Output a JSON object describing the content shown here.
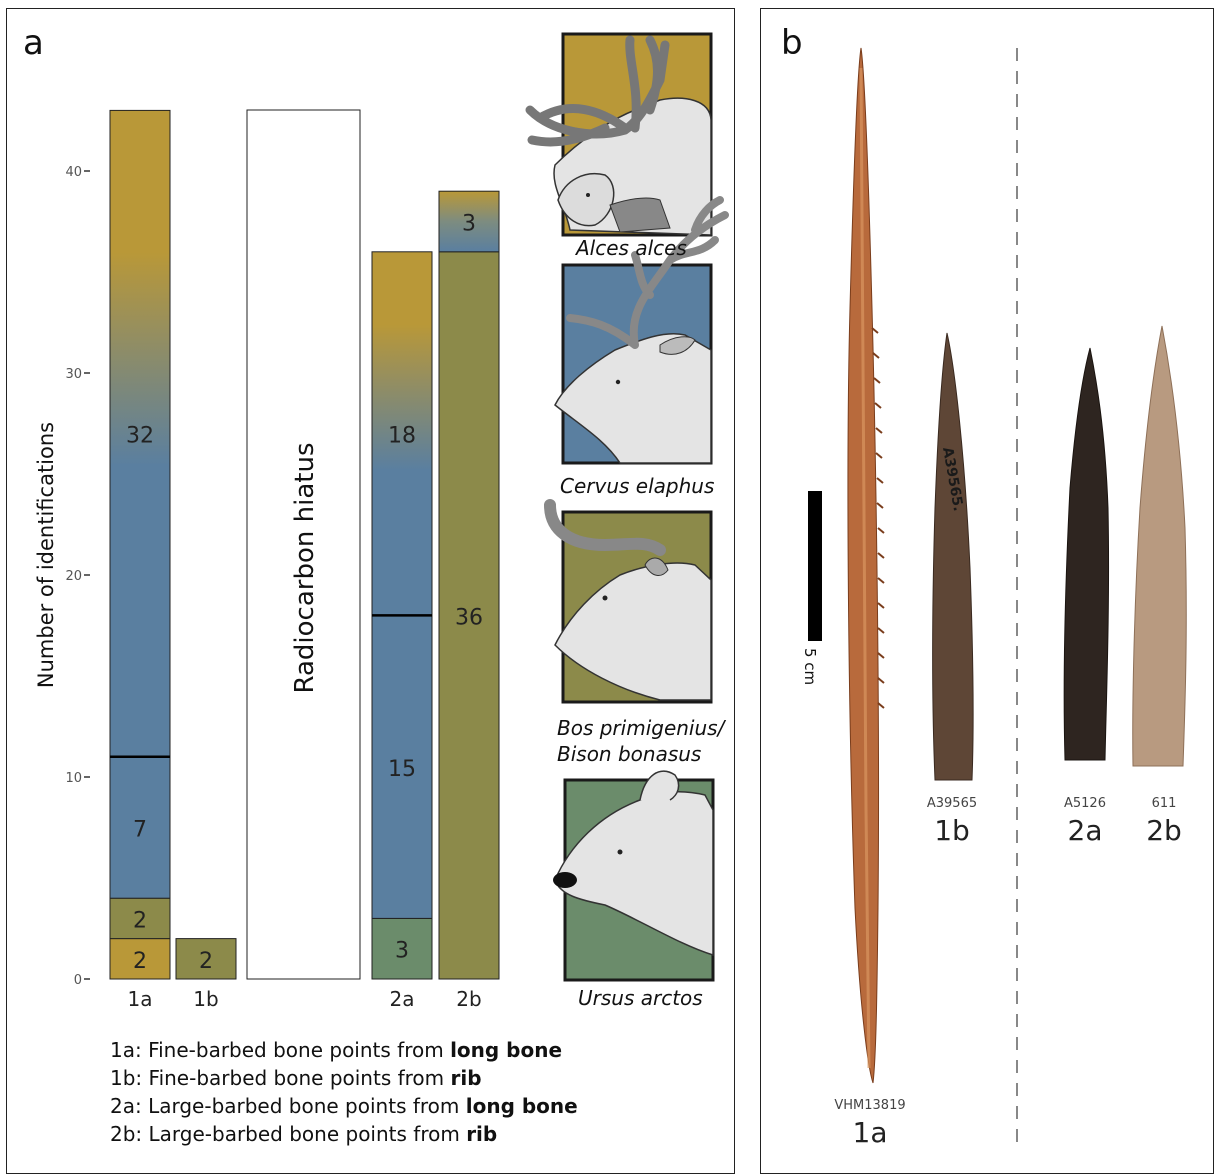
{
  "panel_a_letter": "a",
  "panel_b_letter": "b",
  "chart_data": {
    "type": "bar",
    "stacked": true,
    "ylabel": "Number of identifications",
    "ylim": [
      0,
      43
    ],
    "yticks": [
      0,
      10,
      20,
      30,
      40
    ],
    "categories": [
      "1a",
      "1b",
      "2a",
      "2b"
    ],
    "hiatus_label": "Radiocarbon hiatus",
    "bars": [
      {
        "category": "1a",
        "segments": [
          {
            "value": 2,
            "label": "2",
            "color": "#b99838"
          },
          {
            "value": 2,
            "label": "2",
            "color": "#8c8a4a"
          },
          {
            "value": 7,
            "label": "7",
            "color": "#5a7fa0"
          },
          {
            "value": 32,
            "label": "32",
            "color": "gradient"
          }
        ]
      },
      {
        "category": "1b",
        "segments": [
          {
            "value": 2,
            "label": "2",
            "color": "#8c8a4a"
          }
        ]
      },
      {
        "category": "2a",
        "segments": [
          {
            "value": 3,
            "label": "3",
            "color": "#6b8c6b"
          },
          {
            "value": 15,
            "label": "15",
            "color": "#5a7fa0"
          },
          {
            "value": 18,
            "label": "18",
            "color": "gradient"
          }
        ]
      },
      {
        "category": "2b",
        "segments": [
          {
            "value": 36,
            "label": "36",
            "color": "#8c8a4a"
          },
          {
            "value": 3,
            "label": "3",
            "color": "gradient"
          }
        ]
      }
    ],
    "colors": {
      "alces": "#b99838",
      "cervus": "#5a7fa0",
      "bos": "#8c8a4a",
      "ursus": "#6b8c6b"
    }
  },
  "legend": [
    {
      "prefix": "1a: Fine-barbed bone points from ",
      "bold": "long bone"
    },
    {
      "prefix": "1b: Fine-barbed bone points from ",
      "bold": "rib"
    },
    {
      "prefix": "2a: Large-barbed bone points from ",
      "bold": "long bone"
    },
    {
      "prefix": "2b: Large-barbed bone points from ",
      "bold": "rib"
    }
  ],
  "species": [
    {
      "label": "Alces alces",
      "icon": "moose-icon",
      "color": "#b99838"
    },
    {
      "label": "Cervus elaphus",
      "icon": "red-deer-icon",
      "color": "#5a7fa0"
    },
    {
      "label_line1": "Bos primigenius/",
      "label_line2": "Bison bonasus",
      "icon": "aurochs-icon",
      "color": "#8c8a4a"
    },
    {
      "label": "Ursus arctos",
      "icon": "bear-icon",
      "color": "#6b8c6b"
    }
  ],
  "scale_bar_label": "5 cm",
  "artifacts": [
    {
      "id": "VHM13819",
      "type": "1a"
    },
    {
      "id": "A39565",
      "type": "1b",
      "inscription": "A39565."
    },
    {
      "id": "A5126",
      "type": "2a"
    },
    {
      "id": "611",
      "type": "2b"
    }
  ]
}
